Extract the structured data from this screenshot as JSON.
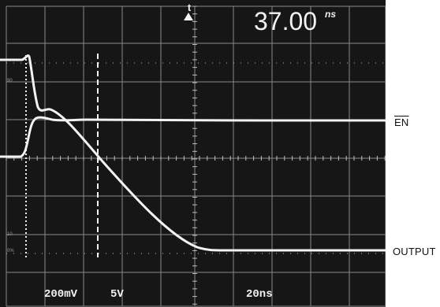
{
  "screen": {
    "background_color": "#161616",
    "grid_color": "#8a8a8a",
    "trace_color": "#f2f2f2"
  },
  "readout": {
    "marker_icon": "delta-t-icon",
    "value": "37.00",
    "unit": "ns"
  },
  "scale": {
    "ch1": "200mV",
    "ch2": "5V",
    "timebase": "20ns"
  },
  "graticule_marks": {
    "top_percent": "90",
    "low_percent": "10",
    "zero_percent": "0%"
  },
  "labels": {
    "en": "EN",
    "output": "OUTPUT"
  }
}
